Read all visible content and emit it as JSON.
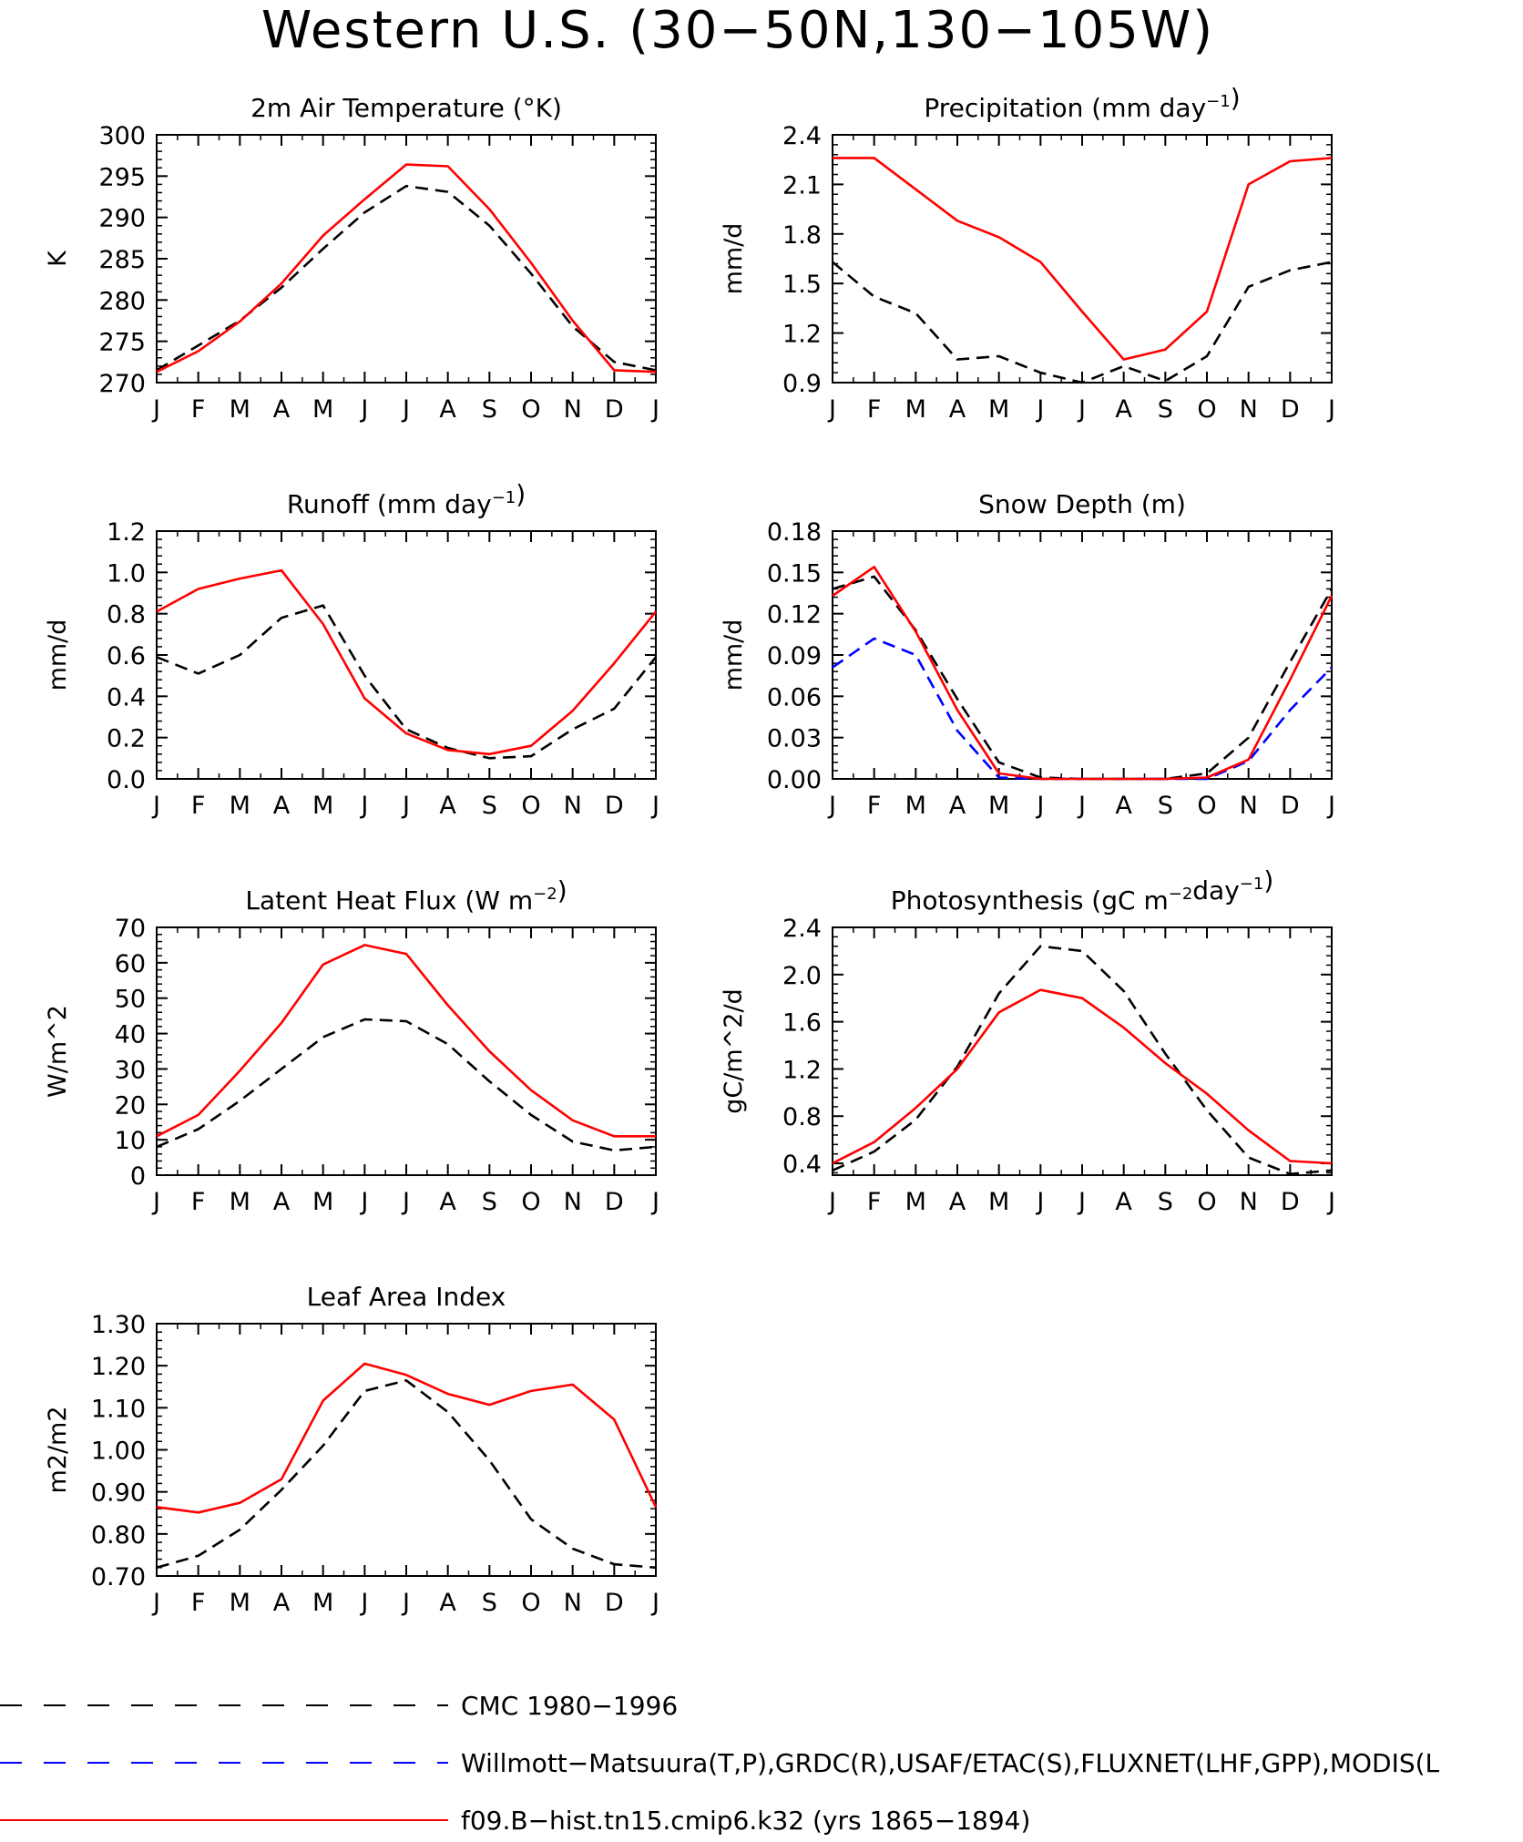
{
  "page": {
    "title": "Western U.S. (30−50N,130−105W)"
  },
  "colors": {
    "cmc": "#000000",
    "obs": "#0000ff",
    "model": "#ff0000"
  },
  "months": [
    "J",
    "F",
    "M",
    "A",
    "M",
    "J",
    "J",
    "A",
    "S",
    "O",
    "N",
    "D",
    "J"
  ],
  "legend": [
    {
      "key": "cmc",
      "label": "CMC 1980−1996",
      "style": "dashed"
    },
    {
      "key": "obs",
      "label": "Willmott−Matsuura(T,P),GRDC(R),USAF/ETAC(S),FLUXNET(LHF,GPP),MODIS(L",
      "style": "dashed"
    },
    {
      "key": "model",
      "label": "f09.B−hist.tn15.cmip6.k32 (yrs 1865−1894)",
      "style": "solid"
    }
  ],
  "chart_data": [
    {
      "type": "line",
      "title": "2m Air Temperature (°K)",
      "title_parts": [
        {
          "t": "2m Air Temperature (°K)"
        }
      ],
      "ylabel": "K",
      "ylim": [
        270,
        300
      ],
      "yticks": [
        "270",
        "275",
        "280",
        "285",
        "290",
        "295",
        "300"
      ],
      "series": [
        {
          "key": "cmc",
          "values": [
            271.5,
            274.5,
            277.5,
            281.5,
            286.2,
            290.6,
            293.8,
            293.1,
            289.0,
            283.2,
            276.8,
            272.5,
            271.5
          ]
        },
        {
          "key": "model",
          "values": [
            271.3,
            273.8,
            277.4,
            282.0,
            287.8,
            292.2,
            296.4,
            296.2,
            291.0,
            284.5,
            277.5,
            271.5,
            271.3
          ]
        }
      ]
    },
    {
      "type": "line",
      "title": "Precipitation (mm day⁻¹)",
      "title_parts": [
        {
          "t": "Precipitation (mm day"
        },
        {
          "t": "−1",
          "sup": true
        },
        {
          "t": ")"
        }
      ],
      "ylabel": "mm/d",
      "ylim": [
        0.9,
        2.4
      ],
      "yticks": [
        "0.9",
        "1.2",
        "1.5",
        "1.8",
        "2.1",
        "2.4"
      ],
      "series": [
        {
          "key": "cmc",
          "values": [
            1.63,
            1.42,
            1.32,
            1.04,
            1.06,
            0.96,
            0.9,
            1.0,
            0.91,
            1.06,
            1.48,
            1.58,
            1.63
          ]
        },
        {
          "key": "model",
          "values": [
            2.26,
            2.26,
            2.07,
            1.88,
            1.78,
            1.63,
            1.33,
            1.04,
            1.1,
            1.33,
            2.1,
            2.24,
            2.26
          ]
        }
      ]
    },
    {
      "type": "line",
      "title": "Runoff (mm day⁻¹)",
      "title_parts": [
        {
          "t": "Runoff (mm day"
        },
        {
          "t": "−1",
          "sup": true
        },
        {
          "t": ")"
        }
      ],
      "ylabel": "mm/d",
      "ylim": [
        0.0,
        1.2
      ],
      "yticks": [
        "0.0",
        "0.2",
        "0.4",
        "0.6",
        "0.8",
        "1.0",
        "1.2"
      ],
      "series": [
        {
          "key": "cmc",
          "values": [
            0.59,
            0.51,
            0.6,
            0.78,
            0.84,
            0.5,
            0.24,
            0.15,
            0.1,
            0.11,
            0.24,
            0.34,
            0.59
          ]
        },
        {
          "key": "model",
          "values": [
            0.81,
            0.92,
            0.97,
            1.01,
            0.75,
            0.39,
            0.22,
            0.14,
            0.12,
            0.16,
            0.33,
            0.56,
            0.81
          ]
        }
      ]
    },
    {
      "type": "line",
      "title": "Snow Depth (m)",
      "title_parts": [
        {
          "t": "Snow Depth (m)"
        }
      ],
      "ylabel": "mm/d",
      "ylim": [
        0.0,
        0.18
      ],
      "yticks": [
        "0.00",
        "0.03",
        "0.06",
        "0.09",
        "0.12",
        "0.15",
        "0.18"
      ],
      "series": [
        {
          "key": "cmc",
          "values": [
            0.138,
            0.147,
            0.108,
            0.058,
            0.012,
            0.001,
            0.0,
            0.0,
            0.0,
            0.004,
            0.03,
            0.085,
            0.138
          ]
        },
        {
          "key": "obs",
          "values": [
            0.081,
            0.102,
            0.09,
            0.035,
            0.001,
            0.0,
            0.0,
            0.0,
            0.0,
            0.0,
            0.013,
            0.05,
            0.081
          ]
        },
        {
          "key": "model",
          "values": [
            0.133,
            0.154,
            0.107,
            0.05,
            0.004,
            0.0,
            0.0,
            0.0,
            0.0,
            0.001,
            0.014,
            0.072,
            0.133
          ]
        }
      ]
    },
    {
      "type": "line",
      "title": "Latent Heat Flux (W m⁻²)",
      "title_parts": [
        {
          "t": "Latent Heat Flux (W m"
        },
        {
          "t": "−2",
          "sup": true
        },
        {
          "t": ")"
        }
      ],
      "ylabel": "W/m^2",
      "ylim": [
        0,
        70
      ],
      "yticks": [
        "0",
        "10",
        "20",
        "30",
        "40",
        "50",
        "60",
        "70"
      ],
      "series": [
        {
          "key": "cmc",
          "values": [
            8,
            13,
            21,
            30,
            39,
            44,
            43.5,
            37,
            26.5,
            17,
            9.5,
            7,
            8
          ]
        },
        {
          "key": "model",
          "values": [
            11,
            17,
            29.5,
            43,
            59.5,
            65,
            62.5,
            48,
            35,
            24,
            15.5,
            11,
            11
          ]
        }
      ]
    },
    {
      "type": "line",
      "title": "Photosynthesis (gC m⁻²day⁻¹)",
      "title_parts": [
        {
          "t": "Photosynthesis (gC m"
        },
        {
          "t": "−2",
          "sup": true
        },
        {
          "t": "day"
        },
        {
          "t": "−1",
          "sup": true
        },
        {
          "t": ")"
        }
      ],
      "ylabel": "gC/m^2/d",
      "ylim": [
        0.3,
        2.4
      ],
      "yticks": [
        "0.4",
        "0.8",
        "1.2",
        "1.6",
        "2.0",
        "2.4"
      ],
      "series": [
        {
          "key": "cmc",
          "values": [
            0.34,
            0.5,
            0.77,
            1.22,
            1.84,
            2.24,
            2.2,
            1.86,
            1.33,
            0.85,
            0.45,
            0.31,
            0.34
          ]
        },
        {
          "key": "model",
          "values": [
            0.4,
            0.58,
            0.87,
            1.2,
            1.68,
            1.87,
            1.8,
            1.55,
            1.25,
            0.99,
            0.68,
            0.42,
            0.4
          ]
        }
      ]
    },
    {
      "type": "line",
      "title": "Leaf Area Index",
      "title_parts": [
        {
          "t": "Leaf Area Index"
        }
      ],
      "ylabel": "m2/m2",
      "ylim": [
        0.7,
        1.3
      ],
      "yticks": [
        "0.70",
        "0.80",
        "0.90",
        "1.00",
        "1.10",
        "1.20",
        "1.30"
      ],
      "series": [
        {
          "key": "cmc",
          "values": [
            0.72,
            0.748,
            0.81,
            0.905,
            1.01,
            1.14,
            1.165,
            1.09,
            0.975,
            0.835,
            0.765,
            0.728,
            0.72
          ]
        },
        {
          "key": "model",
          "values": [
            0.864,
            0.851,
            0.874,
            0.93,
            1.117,
            1.205,
            1.178,
            1.133,
            1.107,
            1.14,
            1.155,
            1.072,
            0.864
          ]
        }
      ]
    }
  ]
}
